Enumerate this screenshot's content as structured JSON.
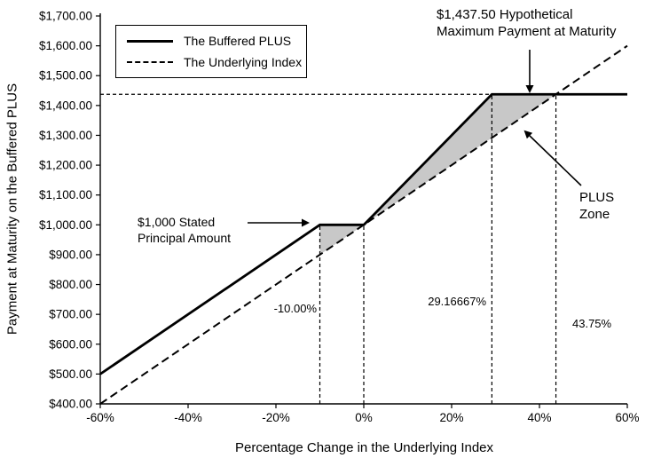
{
  "chart_data": {
    "type": "line",
    "title": "",
    "xlabel": "Percentage Change in the Underlying Index",
    "ylabel": "Payment at Maturity on the Buffered PLUS",
    "xlim": [
      -60,
      60
    ],
    "ylim": [
      400,
      1700
    ],
    "grid": false,
    "legend_position": "top-left",
    "x_ticks": [
      -60,
      -40,
      -20,
      0,
      20,
      40,
      60
    ],
    "x_tick_labels": [
      "-60%",
      "-40%",
      "-20%",
      "0%",
      "20%",
      "40%",
      "60%"
    ],
    "y_ticks": [
      1700,
      1600,
      1500,
      1400,
      1300,
      1200,
      1100,
      1000,
      900,
      800,
      700,
      600,
      500,
      400
    ],
    "y_tick_labels": [
      "$1,700.00",
      "$1,600.00",
      "$1,500.00",
      "$1,400.00",
      "$1,300.00",
      "$1,200.00",
      "$1,100.00",
      "$1,000.00",
      "$900.00",
      "$800.00",
      "$700.00",
      "$600.00",
      "$500.00",
      "$400.00"
    ],
    "series": [
      {
        "name": "The Buffered PLUS",
        "style": "solid",
        "points": [
          [
            -60,
            500
          ],
          [
            -10,
            1000
          ],
          [
            0,
            1000
          ],
          [
            29.16667,
            1437.5
          ],
          [
            60,
            1437.5
          ]
        ]
      },
      {
        "name": "The Underlying Index",
        "style": "dashed",
        "points": [
          [
            -60,
            400
          ],
          [
            60,
            1600
          ]
        ]
      }
    ],
    "shaded_regions": [
      {
        "name": "buffer-zone",
        "points": [
          [
            -10,
            900
          ],
          [
            -10,
            1000
          ],
          [
            0,
            1000
          ]
        ]
      },
      {
        "name": "plus-zone",
        "points": [
          [
            0,
            1000
          ],
          [
            29.16667,
            1437.5
          ],
          [
            43.75,
            1437.5
          ]
        ]
      }
    ],
    "reference_lines": {
      "horizontal": [
        {
          "y": 1437.5,
          "x_from": -60,
          "x_to": 43.75
        }
      ],
      "vertical": [
        {
          "x": -10,
          "y_to": 1000
        },
        {
          "x": 0,
          "y_to": 1000
        },
        {
          "x": 29.16667,
          "y_to": 1437.5
        },
        {
          "x": 43.75,
          "y_to": 1437.5
        }
      ]
    }
  },
  "annotations": {
    "max_payment": {
      "line1": "$1,437.50 Hypothetical",
      "line2": "Maximum Payment at Maturity"
    },
    "principal": {
      "line1": "$1,000 Stated",
      "line2": "Principal Amount"
    },
    "plus_zone": {
      "line1": "PLUS",
      "line2": "Zone"
    },
    "pct_minus10": "-10.00%",
    "pct_2917": "29.16667%",
    "pct_4375": "43.75%"
  },
  "colors": {
    "line": "#000000",
    "shade": "#c8c8c8",
    "background": "#ffffff"
  }
}
